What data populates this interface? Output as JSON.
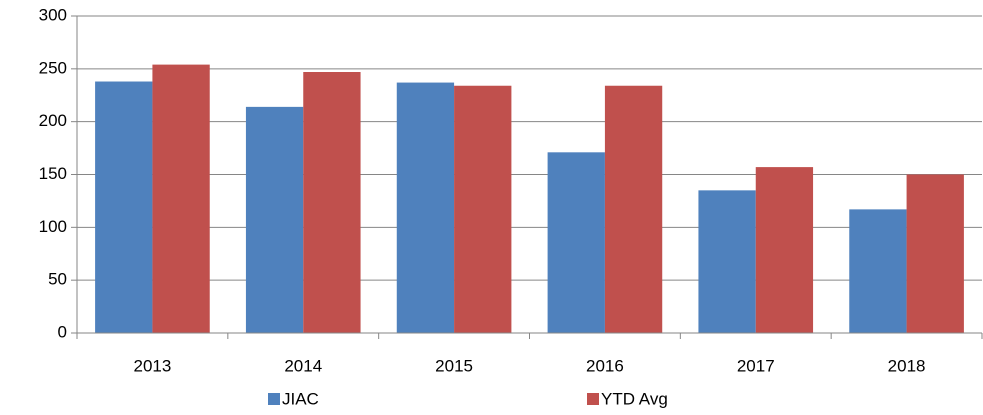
{
  "chart_data": {
    "type": "bar",
    "categories": [
      "2013",
      "2014",
      "2015",
      "2016",
      "2017",
      "2018"
    ],
    "series": [
      {
        "name": "JIAC",
        "color": "#4f81bd",
        "values": [
          238,
          214,
          237,
          171,
          135,
          117
        ]
      },
      {
        "name": "YTD Avg",
        "color": "#c0504d",
        "values": [
          254,
          247,
          234,
          234,
          157,
          150
        ]
      }
    ],
    "ylim": [
      0,
      300
    ],
    "yticks": [
      0,
      50,
      100,
      150,
      200,
      250,
      300
    ],
    "grid": true,
    "legend": "bottom"
  }
}
